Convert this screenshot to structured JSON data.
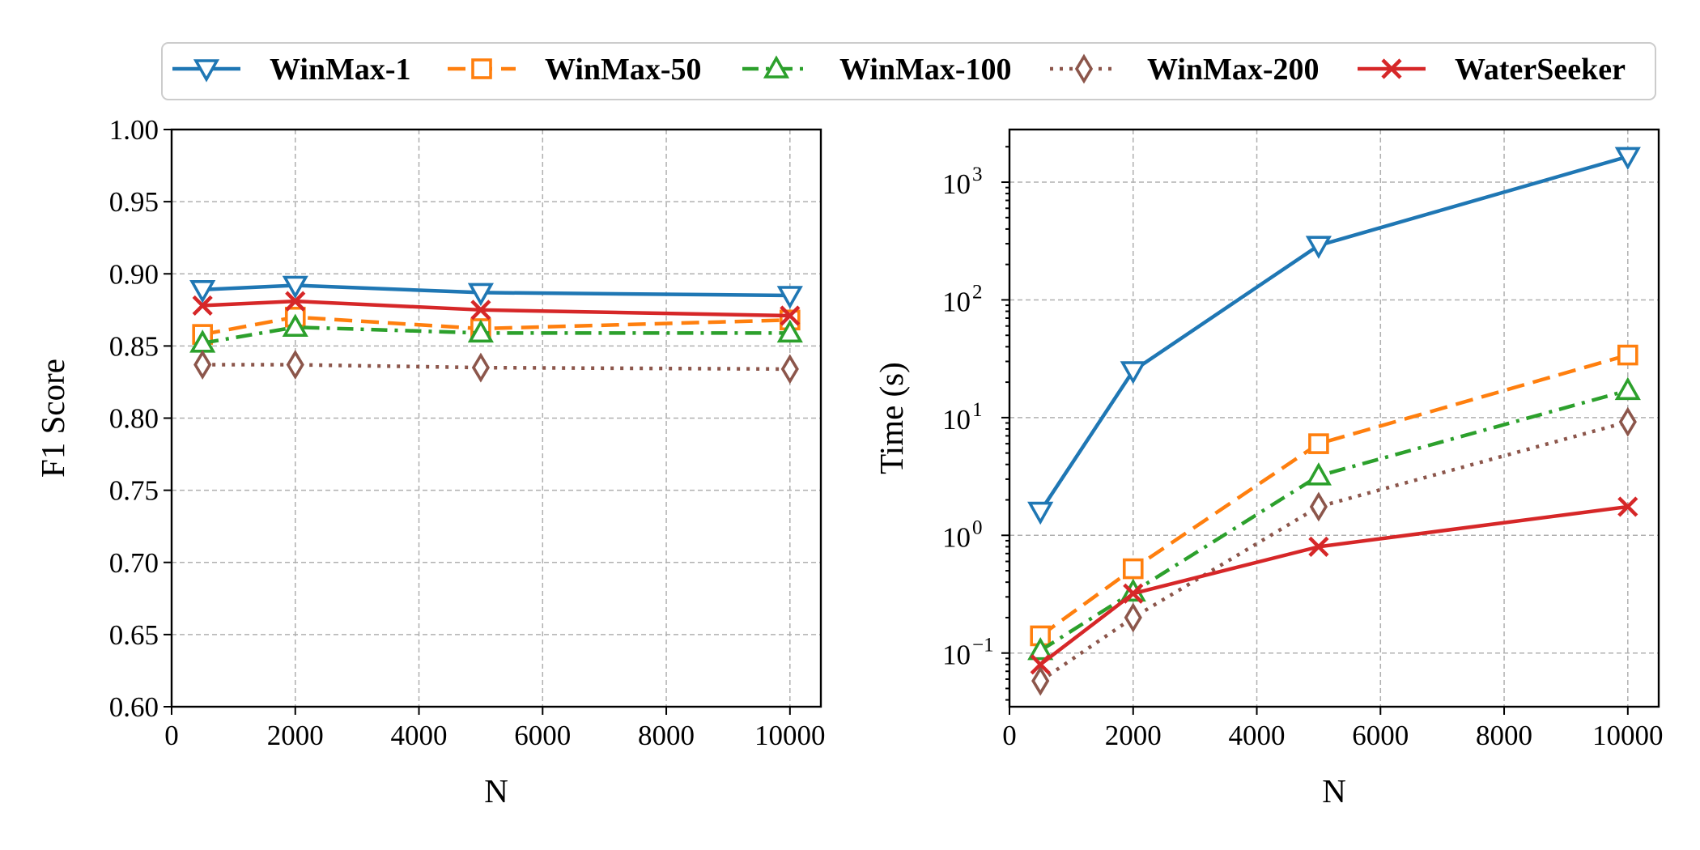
{
  "legend": [
    {
      "label": "WinMax-1"
    },
    {
      "label": "WinMax-50"
    },
    {
      "label": "WinMax-100"
    },
    {
      "label": "WinMax-200"
    },
    {
      "label": "WaterSeeker"
    }
  ],
  "styles": [
    {
      "color": "#1f77b4",
      "dash": "",
      "marker": "triangle-down-icon"
    },
    {
      "color": "#ff7f0e",
      "dash": "22 11",
      "marker": "square-icon"
    },
    {
      "color": "#2ca02c",
      "dash": "20 9 4 9",
      "marker": "triangle-up-icon"
    },
    {
      "color": "#8c564b",
      "dash": "4 8",
      "marker": "thin-diamond-icon"
    },
    {
      "color": "#d62728",
      "dash": "",
      "marker": "x-icon"
    }
  ],
  "chart_data": [
    {
      "type": "line",
      "xlabel": "N",
      "ylabel": "F1 Score",
      "xlim": [
        0,
        10500
      ],
      "ylim": [
        0.6,
        1.0
      ],
      "xticks": [
        0,
        2000,
        4000,
        6000,
        8000,
        10000
      ],
      "xtick_labels": [
        "0",
        "2000",
        "4000",
        "6000",
        "8000",
        "10000"
      ],
      "yticks": [
        0.6,
        0.65,
        0.7,
        0.75,
        0.8,
        0.85,
        0.9,
        0.95,
        1.0
      ],
      "ytick_labels": [
        "0.60",
        "0.65",
        "0.70",
        "0.75",
        "0.80",
        "0.85",
        "0.90",
        "0.95",
        "1.00"
      ],
      "yscale": "linear",
      "grid": true,
      "x": [
        500,
        2000,
        5000,
        10000
      ],
      "series": [
        {
          "name": "WinMax-1",
          "values": [
            0.889,
            0.892,
            0.887,
            0.885
          ]
        },
        {
          "name": "WinMax-50",
          "values": [
            0.858,
            0.87,
            0.862,
            0.868
          ]
        },
        {
          "name": "WinMax-100",
          "values": [
            0.852,
            0.863,
            0.859,
            0.859
          ]
        },
        {
          "name": "WinMax-200",
          "values": [
            0.837,
            0.837,
            0.835,
            0.834
          ]
        },
        {
          "name": "WaterSeeker",
          "values": [
            0.878,
            0.881,
            0.875,
            0.871
          ]
        }
      ]
    },
    {
      "type": "line",
      "xlabel": "N",
      "ylabel": "Time (s)",
      "xlim": [
        0,
        10500
      ],
      "ylim": [
        0.035,
        2800
      ],
      "xticks": [
        0,
        2000,
        4000,
        6000,
        8000,
        10000
      ],
      "xtick_labels": [
        "0",
        "2000",
        "4000",
        "6000",
        "8000",
        "10000"
      ],
      "yticks": [
        0.1,
        1,
        10,
        100,
        1000
      ],
      "ytick_base": "10",
      "ytick_exponents": [
        "−1",
        "0",
        "1",
        "2",
        "3"
      ],
      "yscale": "log",
      "grid": true,
      "x": [
        500,
        2000,
        5000,
        10000
      ],
      "series": [
        {
          "name": "WinMax-1",
          "values": [
            1.6,
            25,
            290,
            1650
          ]
        },
        {
          "name": "WinMax-50",
          "values": [
            0.14,
            0.52,
            6.0,
            34
          ]
        },
        {
          "name": "WinMax-100",
          "values": [
            0.105,
            0.33,
            3.2,
            17
          ]
        },
        {
          "name": "WinMax-200",
          "values": [
            0.058,
            0.2,
            1.75,
            9.2
          ]
        },
        {
          "name": "WaterSeeker",
          "values": [
            0.08,
            0.32,
            0.8,
            1.75
          ]
        }
      ]
    }
  ]
}
